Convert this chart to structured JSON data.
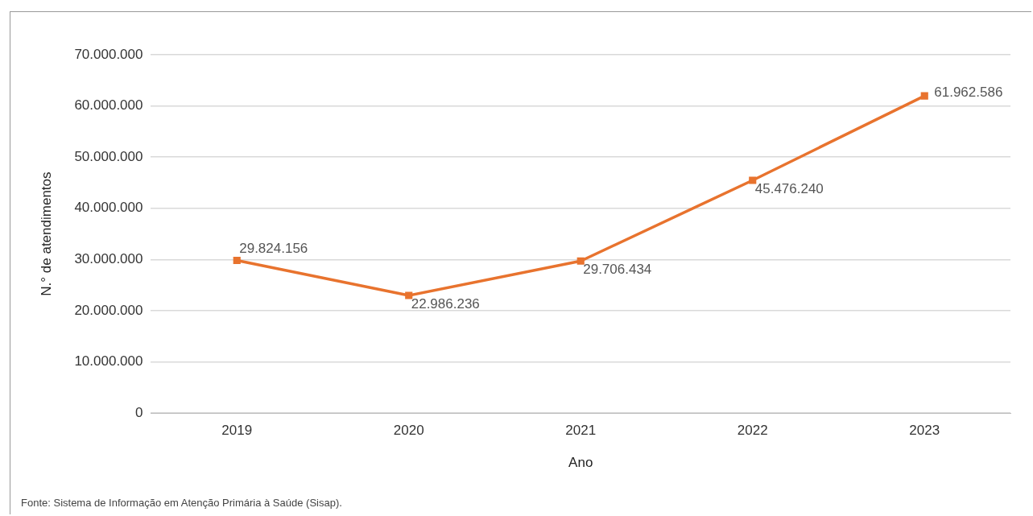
{
  "chart_data": {
    "type": "line",
    "xlabel": "Ano",
    "ylabel": "N.° de atendimentos",
    "categories": [
      "2019",
      "2020",
      "2021",
      "2022",
      "2023"
    ],
    "series": [
      {
        "color": "#e8732e",
        "values": [
          29824156,
          22986236,
          29706434,
          45476240,
          61962586
        ],
        "value_labels": [
          "29.824.156",
          "22.986.236",
          "29.706.434",
          "45.476.240",
          "61.962.586"
        ]
      }
    ],
    "ylim": [
      0,
      70000000
    ],
    "yticks": [
      {
        "value": 0,
        "label": "0"
      },
      {
        "value": 10000000,
        "label": "10.000.000"
      },
      {
        "value": 20000000,
        "label": "20.000.000"
      },
      {
        "value": 30000000,
        "label": "30.000.000"
      },
      {
        "value": 40000000,
        "label": "40.000.000"
      },
      {
        "value": 50000000,
        "label": "50.000.000"
      },
      {
        "value": 60000000,
        "label": "60.000.000"
      },
      {
        "value": 70000000,
        "label": "70.000.000"
      }
    ],
    "grid": "y",
    "legend": false,
    "marker": "square",
    "line_style": "solid",
    "annotations": [
      "Fonte: Sistema de Informação em Atenção Primária à Saúde (Sisap)."
    ]
  }
}
